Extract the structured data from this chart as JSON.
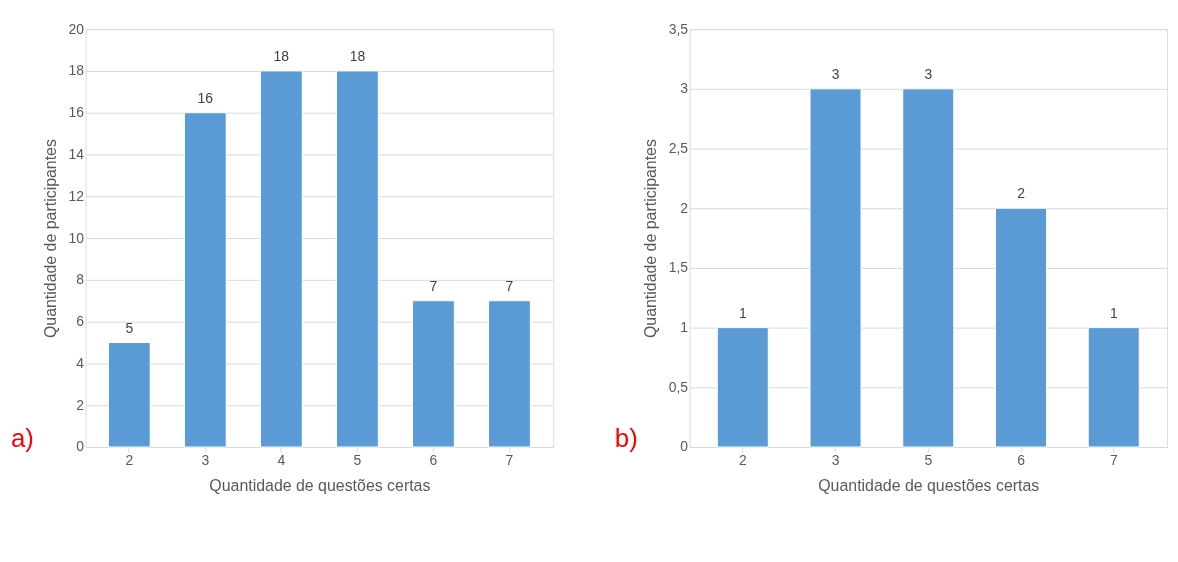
{
  "chart_data": [
    {
      "type": "bar",
      "xlabel": "Quantidade de questões certas",
      "ylabel": "Quantidade de participantes",
      "categories": [
        "2",
        "3",
        "4",
        "5",
        "6",
        "7"
      ],
      "values": [
        5,
        16,
        18,
        18,
        7,
        7
      ],
      "color": "#5b9bd5",
      "ylim": [
        0,
        20
      ],
      "yticks": [
        0,
        2,
        4,
        6,
        8,
        10,
        12,
        14,
        16,
        18,
        20
      ],
      "grid": "y",
      "data_labels": true,
      "annotations": [
        "a)"
      ]
    },
    {
      "type": "bar",
      "xlabel": "Quantidade de questões certas",
      "ylabel": "Quantidade de participantes",
      "categories": [
        "2",
        "3",
        "5",
        "6",
        "7"
      ],
      "values": [
        1,
        3,
        3,
        2,
        1
      ],
      "color": "#5b9bd5",
      "ylim": [
        0,
        3.5
      ],
      "yticks": [
        0,
        {
          "value": 0.5,
          "label": "0,5"
        },
        1,
        {
          "value": 1.5,
          "label": "1,5"
        },
        2,
        {
          "value": 2.5,
          "label": "2,5"
        },
        3,
        {
          "value": 3.5,
          "label": "3,5"
        }
      ],
      "grid": "y",
      "data_labels": true,
      "annotations": [
        "b)"
      ]
    }
  ]
}
